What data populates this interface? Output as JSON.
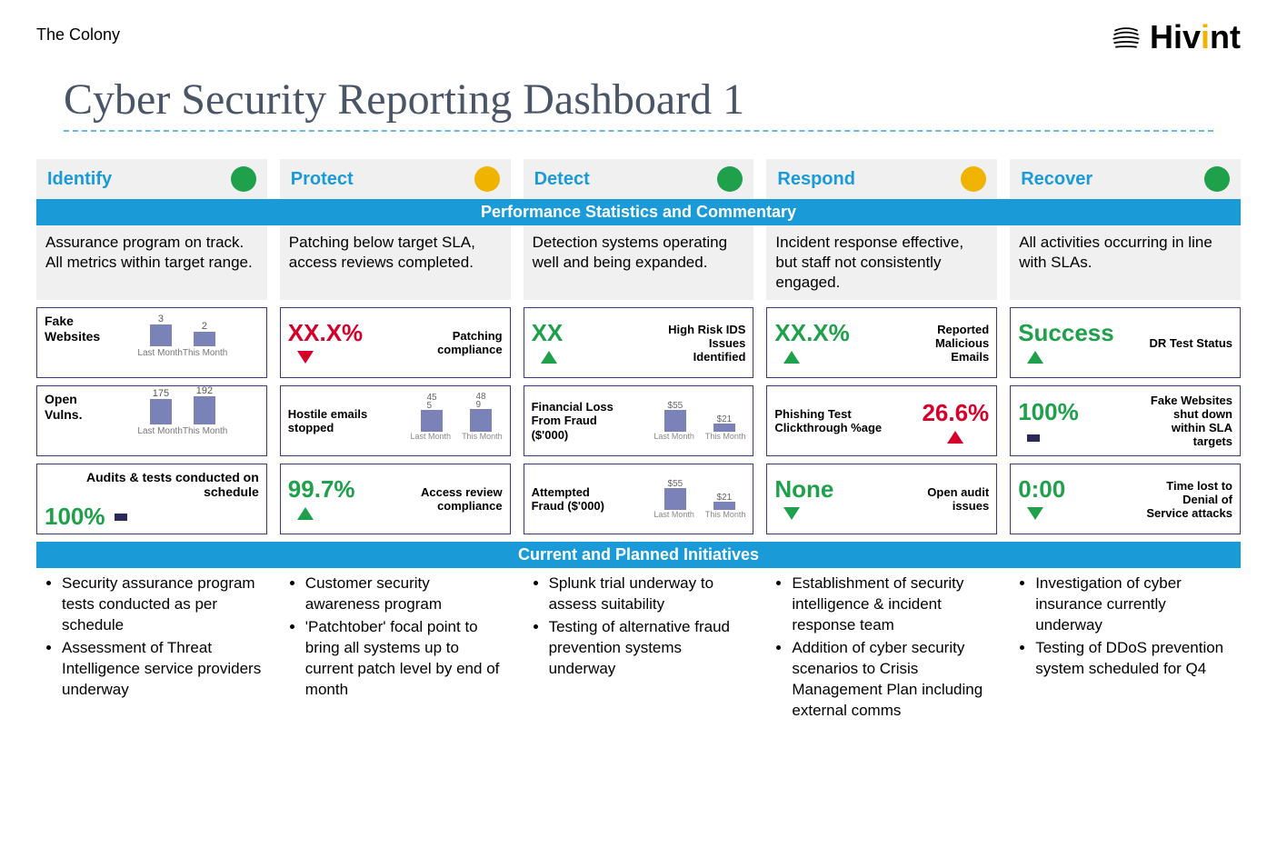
{
  "header": {
    "colony": "The Colony",
    "brand": "Hivint"
  },
  "title": "Cyber Security Reporting Dashboard 1",
  "banners": {
    "perf": "Performance Statistics and Commentary",
    "init": "Current and Planned Initiatives"
  },
  "axis": {
    "last": "Last Month",
    "this": "This Month"
  },
  "status_colors": {
    "green": "#1fa04a",
    "amber": "#f0b400"
  },
  "columns": [
    {
      "key": "identify",
      "title": "Identify",
      "status": "green",
      "commentary": "Assurance program on track.  All metrics within target range.",
      "metrics": [
        {
          "type": "bars",
          "title": "Fake Websites",
          "last": 3,
          "this": 2,
          "maxScale": 4
        },
        {
          "type": "bars",
          "title": "Open Vulns.",
          "last": 175,
          "this": 192,
          "maxScale": 200
        },
        {
          "type": "value-label",
          "value": "100%",
          "valueColor": "green",
          "indicator": "square",
          "label": "Audits & tests conducted on schedule",
          "labelSide": "top-full"
        }
      ],
      "initiatives": [
        "Security assurance program tests conducted as per schedule",
        "Assessment of Threat Intelligence service providers underway"
      ]
    },
    {
      "key": "protect",
      "title": "Protect",
      "status": "amber",
      "commentary": "Patching below target SLA, access reviews completed.",
      "metrics": [
        {
          "type": "value-right",
          "value": "XX.X%",
          "valueColor": "red",
          "arrow": "down-red",
          "label": "Patching compliance"
        },
        {
          "type": "bars-inline",
          "title": "Hostile emails stopped",
          "last": 455,
          "this": 489,
          "lastDisplay": "45\n5",
          "thisDisplay": "48\n9",
          "maxScale": 500
        },
        {
          "type": "value-right",
          "value": "99.7%",
          "valueColor": "green",
          "arrow": "up-green",
          "label": "Access review compliance"
        }
      ],
      "initiatives": [
        "Customer security awareness program",
        "'Patchtober' focal point to bring all systems up to current patch level by end of month"
      ]
    },
    {
      "key": "detect",
      "title": "Detect",
      "status": "green",
      "commentary": "Detection systems operating well and being expanded.",
      "metrics": [
        {
          "type": "value-right",
          "value": "XX",
          "valueColor": "green",
          "arrow": "up-green",
          "label": "High Risk IDS Issues Identified"
        },
        {
          "type": "bars-inline",
          "title": "Financial Loss From Fraud ($'000)",
          "last": 55,
          "this": 21,
          "lastDisplay": "$55",
          "thisDisplay": "$21",
          "maxScale": 60
        },
        {
          "type": "bars-inline",
          "title": "Attempted Fraud ($'000)",
          "last": 55,
          "this": 21,
          "lastDisplay": "$55",
          "thisDisplay": "$21",
          "maxScale": 60
        }
      ],
      "initiatives": [
        "Splunk trial underway to assess suitability",
        "Testing of alternative fraud prevention systems underway"
      ]
    },
    {
      "key": "respond",
      "title": "Respond",
      "status": "amber",
      "commentary": "Incident response effective, but staff not consistently engaged.",
      "metrics": [
        {
          "type": "value-right",
          "value": "XX.X%",
          "valueColor": "green",
          "arrow": "up-green",
          "label": "Reported Malicious Emails"
        },
        {
          "type": "label-value",
          "title": "Phishing Test Clickthrough %age",
          "value": "26.6%",
          "valueColor": "red",
          "arrow": "up-red"
        },
        {
          "type": "value-right",
          "value": "None",
          "valueColor": "green",
          "arrow": "down-green",
          "label": "Open audit issues"
        }
      ],
      "initiatives": [
        "Establishment of security intelligence & incident response team",
        "Addition of cyber security scenarios to Crisis Management Plan including external comms"
      ]
    },
    {
      "key": "recover",
      "title": "Recover",
      "status": "green",
      "commentary": "All activities occurring in line with SLAs.",
      "metrics": [
        {
          "type": "value-right",
          "value": "Success",
          "valueColor": "green",
          "arrow": "up-green",
          "label": "DR Test Status"
        },
        {
          "type": "value-right",
          "value": "100%",
          "valueColor": "green",
          "indicator": "square",
          "label": "Fake Websites shut down within SLA targets"
        },
        {
          "type": "value-right",
          "value": "0:00",
          "valueColor": "green",
          "arrow": "down-green",
          "label": "Time lost to Denial of Service attacks"
        }
      ],
      "initiatives": [
        "Investigation of cyber insurance currently underway",
        "Testing of DDoS prevention system scheduled for Q4"
      ]
    }
  ]
}
